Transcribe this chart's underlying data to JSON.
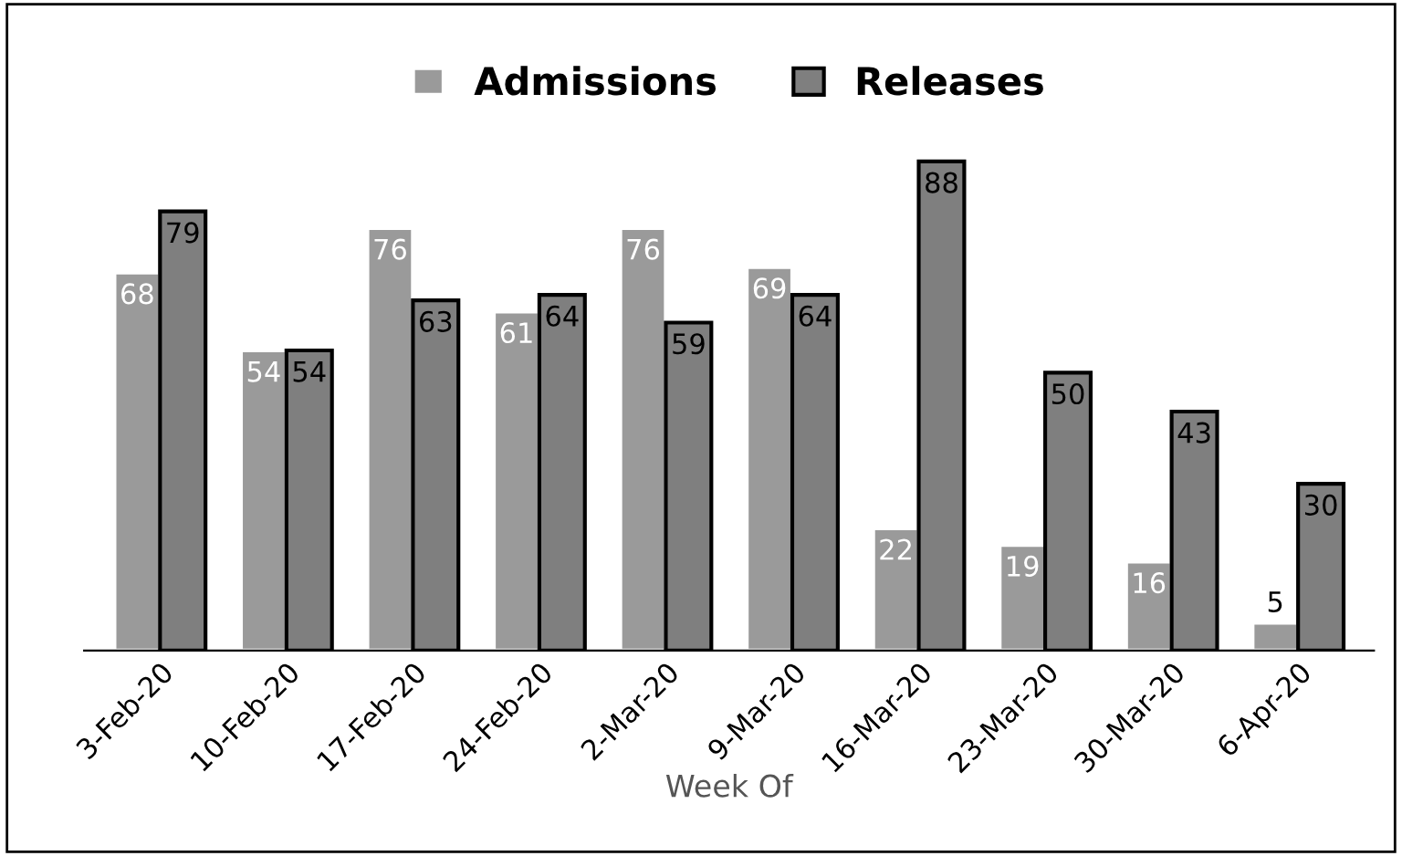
{
  "chart_data": {
    "type": "bar",
    "xlabel": "Week Of",
    "categories": [
      "3-Feb-20",
      "10-Feb-20",
      "17-Feb-20",
      "24-Feb-20",
      "2-Mar-20",
      "9-Mar-20",
      "16-Mar-20",
      "23-Mar-20",
      "30-Mar-20",
      "6-Apr-20"
    ],
    "series": [
      {
        "name": "Admissions",
        "color": "#9a9a9a",
        "values": [
          68,
          54,
          76,
          61,
          76,
          69,
          22,
          19,
          16,
          5
        ]
      },
      {
        "name": "Releases",
        "color": "#7f7f7f",
        "values": [
          79,
          54,
          63,
          64,
          59,
          64,
          88,
          50,
          43,
          30
        ]
      }
    ],
    "data_labels": true,
    "legend": "top",
    "grid": false
  }
}
